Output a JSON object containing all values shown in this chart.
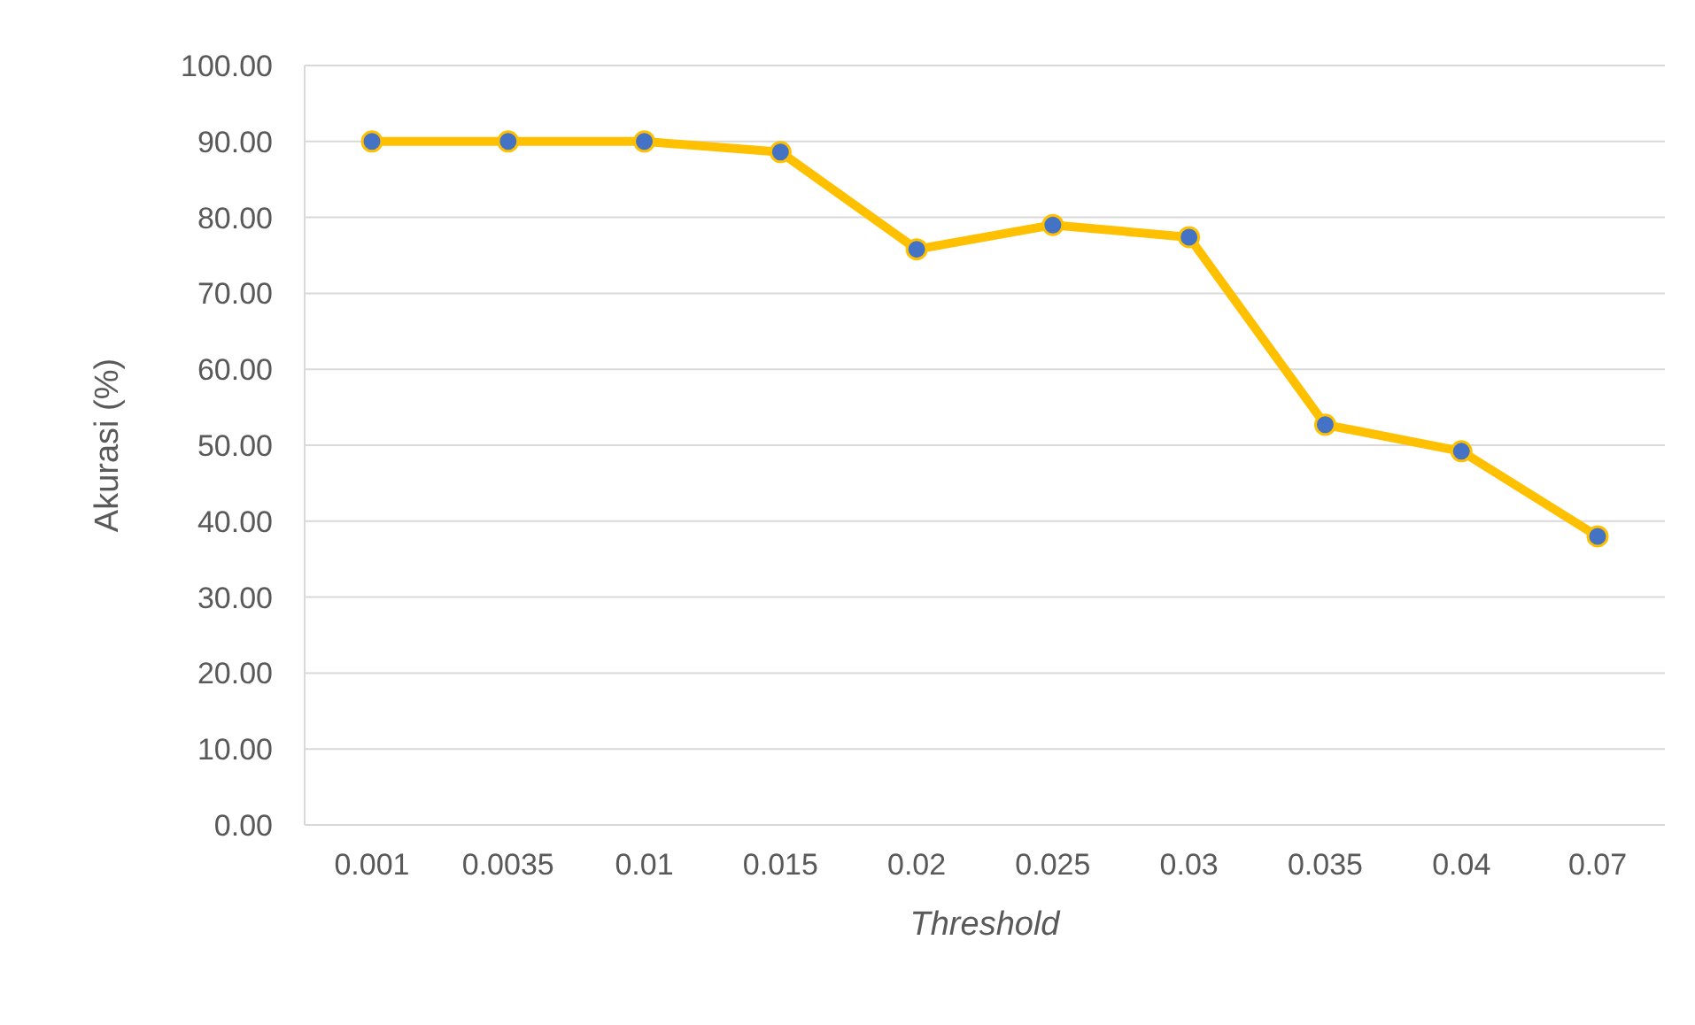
{
  "chart_data": {
    "type": "line",
    "xlabel": "Threshold",
    "ylabel": "Akurasi (%)",
    "categories": [
      "0.001",
      "0.0035",
      "0.01",
      "0.015",
      "0.02",
      "0.025",
      "0.03",
      "0.035",
      "0.04",
      "0.07"
    ],
    "series": [
      {
        "color": "#ffc000",
        "values": [
          90.0,
          90.0,
          90.0,
          88.6,
          75.8,
          79.0,
          77.4,
          52.7,
          49.2,
          38.0
        ]
      }
    ],
    "ylim": [
      0,
      100
    ],
    "yticks": [
      {
        "value": 0,
        "label": "0.00"
      },
      {
        "value": 10,
        "label": "10.00"
      },
      {
        "value": 20,
        "label": "20.00"
      },
      {
        "value": 30,
        "label": "30.00"
      },
      {
        "value": 40,
        "label": "40.00"
      },
      {
        "value": 50,
        "label": "50.00"
      },
      {
        "value": 60,
        "label": "60.00"
      },
      {
        "value": 70,
        "label": "70.00"
      },
      {
        "value": 80,
        "label": "80.00"
      },
      {
        "value": 90,
        "label": "90.00"
      },
      {
        "value": 100,
        "label": "100.00"
      }
    ],
    "grid": "y",
    "marker": "circle",
    "line_style": "solid",
    "legend": false
  }
}
